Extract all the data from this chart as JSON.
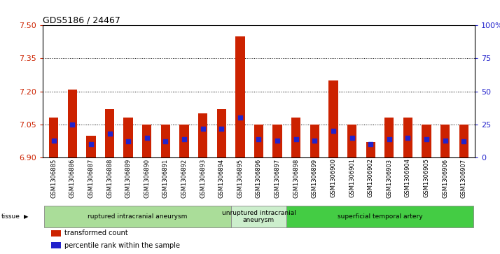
{
  "title": "GDS5186 / 24467",
  "samples": [
    "GSM1306885",
    "GSM1306886",
    "GSM1306887",
    "GSM1306888",
    "GSM1306889",
    "GSM1306890",
    "GSM1306891",
    "GSM1306892",
    "GSM1306893",
    "GSM1306894",
    "GSM1306895",
    "GSM1306896",
    "GSM1306897",
    "GSM1306898",
    "GSM1306899",
    "GSM1306900",
    "GSM1306901",
    "GSM1306902",
    "GSM1306903",
    "GSM1306904",
    "GSM1306905",
    "GSM1306906",
    "GSM1306907"
  ],
  "red_values": [
    7.08,
    7.21,
    7.0,
    7.12,
    7.08,
    7.05,
    7.05,
    7.05,
    7.1,
    7.12,
    7.45,
    7.05,
    7.05,
    7.08,
    7.05,
    7.25,
    7.05,
    6.97,
    7.08,
    7.08,
    7.05,
    7.05,
    7.05
  ],
  "blue_values": [
    13,
    25,
    10,
    18,
    12,
    15,
    12,
    14,
    22,
    22,
    30,
    14,
    13,
    14,
    13,
    20,
    15,
    10,
    14,
    15,
    14,
    13,
    12
  ],
  "ylim_left": [
    6.9,
    7.5
  ],
  "ylim_right": [
    0,
    100
  ],
  "yticks_left": [
    6.9,
    7.05,
    7.2,
    7.35,
    7.5
  ],
  "yticks_right": [
    0,
    25,
    50,
    75,
    100
  ],
  "ytick_labels_right": [
    "0",
    "25",
    "50",
    "75",
    "100%"
  ],
  "baseline": 6.9,
  "groups": [
    {
      "label": "ruptured intracranial aneurysm",
      "start": 0,
      "end": 10,
      "color": "#aadd99"
    },
    {
      "label": "unruptured intracranial\naneurysm",
      "start": 10,
      "end": 13,
      "color": "#cceecc"
    },
    {
      "label": "superficial temporal artery",
      "start": 13,
      "end": 23,
      "color": "#44cc44"
    }
  ],
  "bar_color": "#cc2200",
  "dot_color": "#2222cc",
  "bar_width": 0.5,
  "plot_bg": "#ffffff",
  "left_tick_color": "#cc2200",
  "right_tick_color": "#2222cc",
  "tissue_label": "tissue",
  "legend_items": [
    {
      "label": "transformed count",
      "color": "#cc2200"
    },
    {
      "label": "percentile rank within the sample",
      "color": "#2222cc"
    }
  ],
  "sample_bg": "#d8d8d8"
}
